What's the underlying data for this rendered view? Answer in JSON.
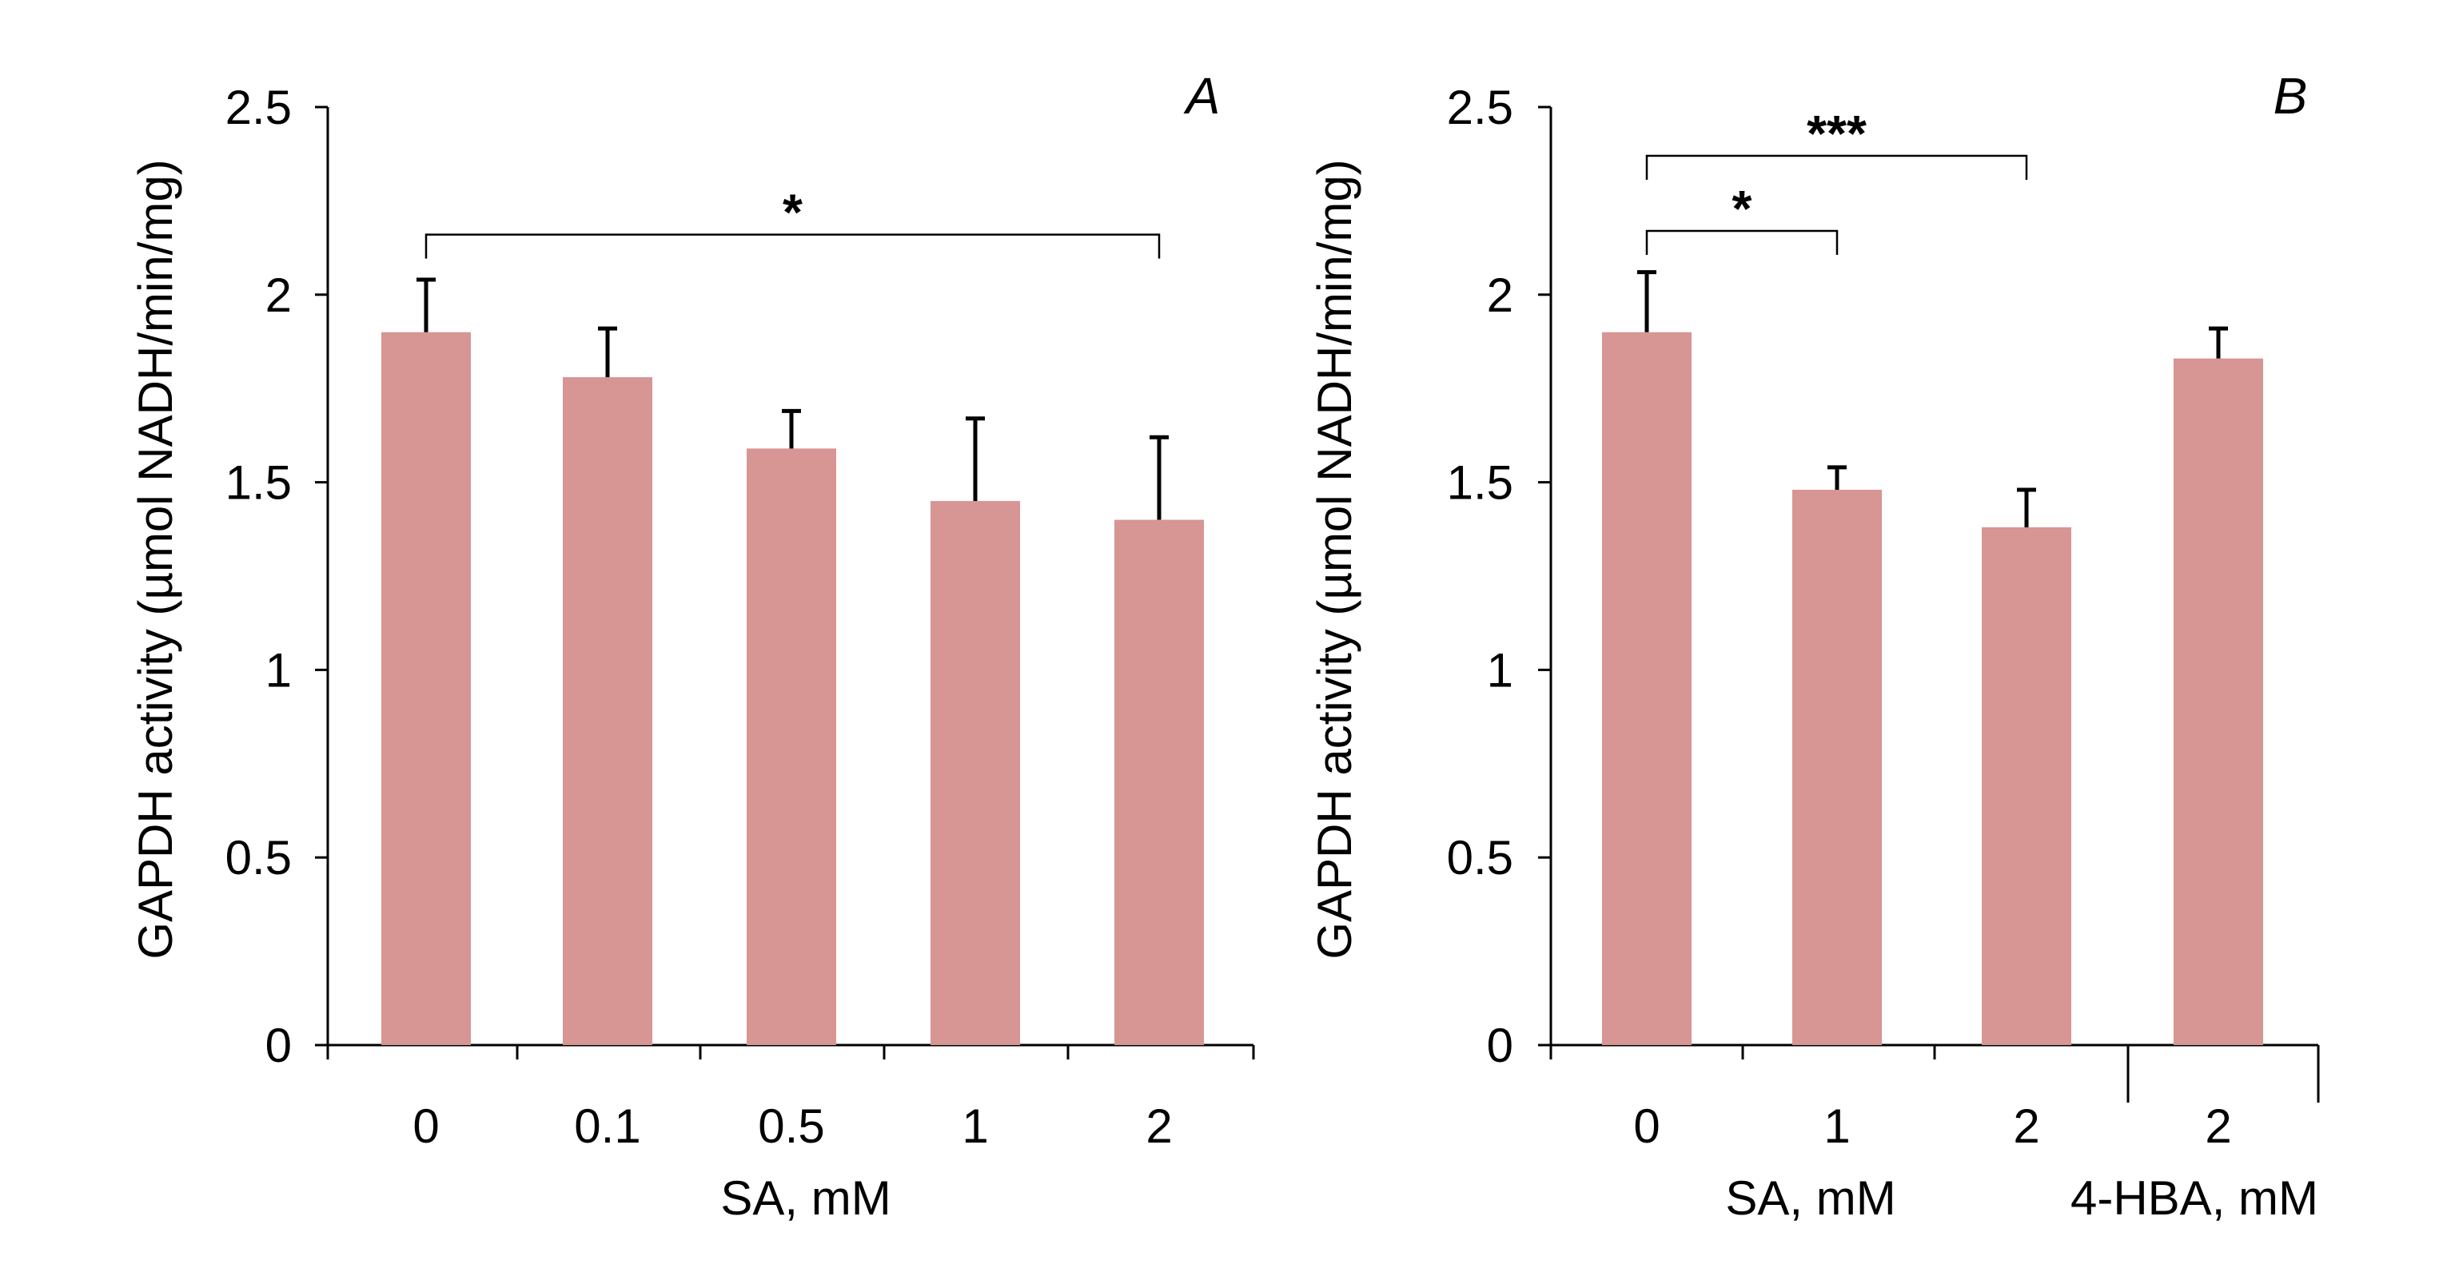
{
  "bar_color": "#D79594",
  "chart_data": [
    {
      "type": "bar",
      "panel_label": "A",
      "ylabel": "GAPDH activity (µmol NADH/min/mg)",
      "ylim": [
        0,
        2.5
      ],
      "yticks": [
        "0",
        "0.5",
        "1",
        "1.5",
        "2",
        "2.5"
      ],
      "categories": [
        "0",
        "0.1",
        "0.5",
        "1",
        "2"
      ],
      "values": [
        1.9,
        1.78,
        1.59,
        1.45,
        1.4
      ],
      "errors": [
        0.14,
        0.13,
        0.1,
        0.22,
        0.22
      ],
      "xlabel": "SA, mM",
      "significance": [
        {
          "from": 0,
          "to": 4,
          "label": "*",
          "y": 2.16
        }
      ]
    },
    {
      "type": "bar",
      "panel_label": "B",
      "ylabel": "GAPDH activity (µmol NADH/min/mg)",
      "ylim": [
        0,
        2.5
      ],
      "yticks": [
        "0",
        "0.5",
        "1",
        "1.5",
        "2",
        "2.5"
      ],
      "categories": [
        "0",
        "1",
        "2",
        "2"
      ],
      "values": [
        1.9,
        1.48,
        1.38,
        1.83
      ],
      "errors": [
        0.16,
        0.06,
        0.1,
        0.08
      ],
      "groups": [
        {
          "label": "SA, mM",
          "start": 0,
          "end": 2
        },
        {
          "label": "4-HBA, mM",
          "start": 3,
          "end": 3
        }
      ],
      "significance": [
        {
          "from": 0,
          "to": 1,
          "label": "*",
          "y": 2.17
        },
        {
          "from": 0,
          "to": 2,
          "label": "***",
          "y": 2.37
        }
      ]
    }
  ]
}
